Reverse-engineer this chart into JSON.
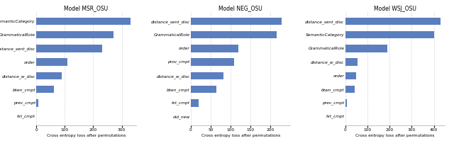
{
  "charts": [
    {
      "title": "Model MSR_OSU",
      "xlabel": "Cross entropy loss after permutations",
      "categories": [
        "txt_cmpt",
        "prev_cmpt",
        "btwn_cmpt",
        "distance_w_disc",
        "order",
        "distance_sent_disc",
        "GrammaticalRole",
        "SemanticCategory"
      ],
      "values": [
        0,
        7,
        62,
        88,
        108,
        230,
        270,
        330
      ],
      "xlim": [
        0,
        350
      ],
      "xticks": [
        0,
        100,
        200,
        300
      ]
    },
    {
      "title": "Model NEG_OSU",
      "xlabel": "Cross entropy loss after permutations",
      "categories": [
        "old_new",
        "txt_cmpt",
        "btwn_cmpt",
        "distance_w_disc",
        "prov_cmpt",
        "order",
        "GrammaticalRole",
        "distance_sent_disc"
      ],
      "values": [
        0,
        20,
        65,
        82,
        108,
        120,
        215,
        228
      ],
      "xlim": [
        0,
        250
      ],
      "xticks": [
        0,
        50,
        100,
        150,
        200
      ]
    },
    {
      "title": "Model WSJ_OSU",
      "xlabel": "Cross entropy loss after permutations",
      "categories": [
        "txt_cmpt",
        "prev_cmpt",
        "btwn_cmpt",
        "order",
        "distance_w_disc",
        "GrammaticalRole",
        "SemanticCategory",
        "distance_sent_disc"
      ],
      "values": [
        0,
        8,
        42,
        50,
        55,
        190,
        400,
        430
      ],
      "xlim": [
        0,
        450
      ],
      "xticks": [
        0,
        100,
        200,
        300,
        400
      ]
    }
  ],
  "bar_color": "#5b7fbe",
  "background_color": "#ffffff",
  "grid_color": "#d0d0d0",
  "title_fontsize": 5.5,
  "label_fontsize": 4.2,
  "tick_fontsize": 4.2,
  "bar_height": 0.55
}
